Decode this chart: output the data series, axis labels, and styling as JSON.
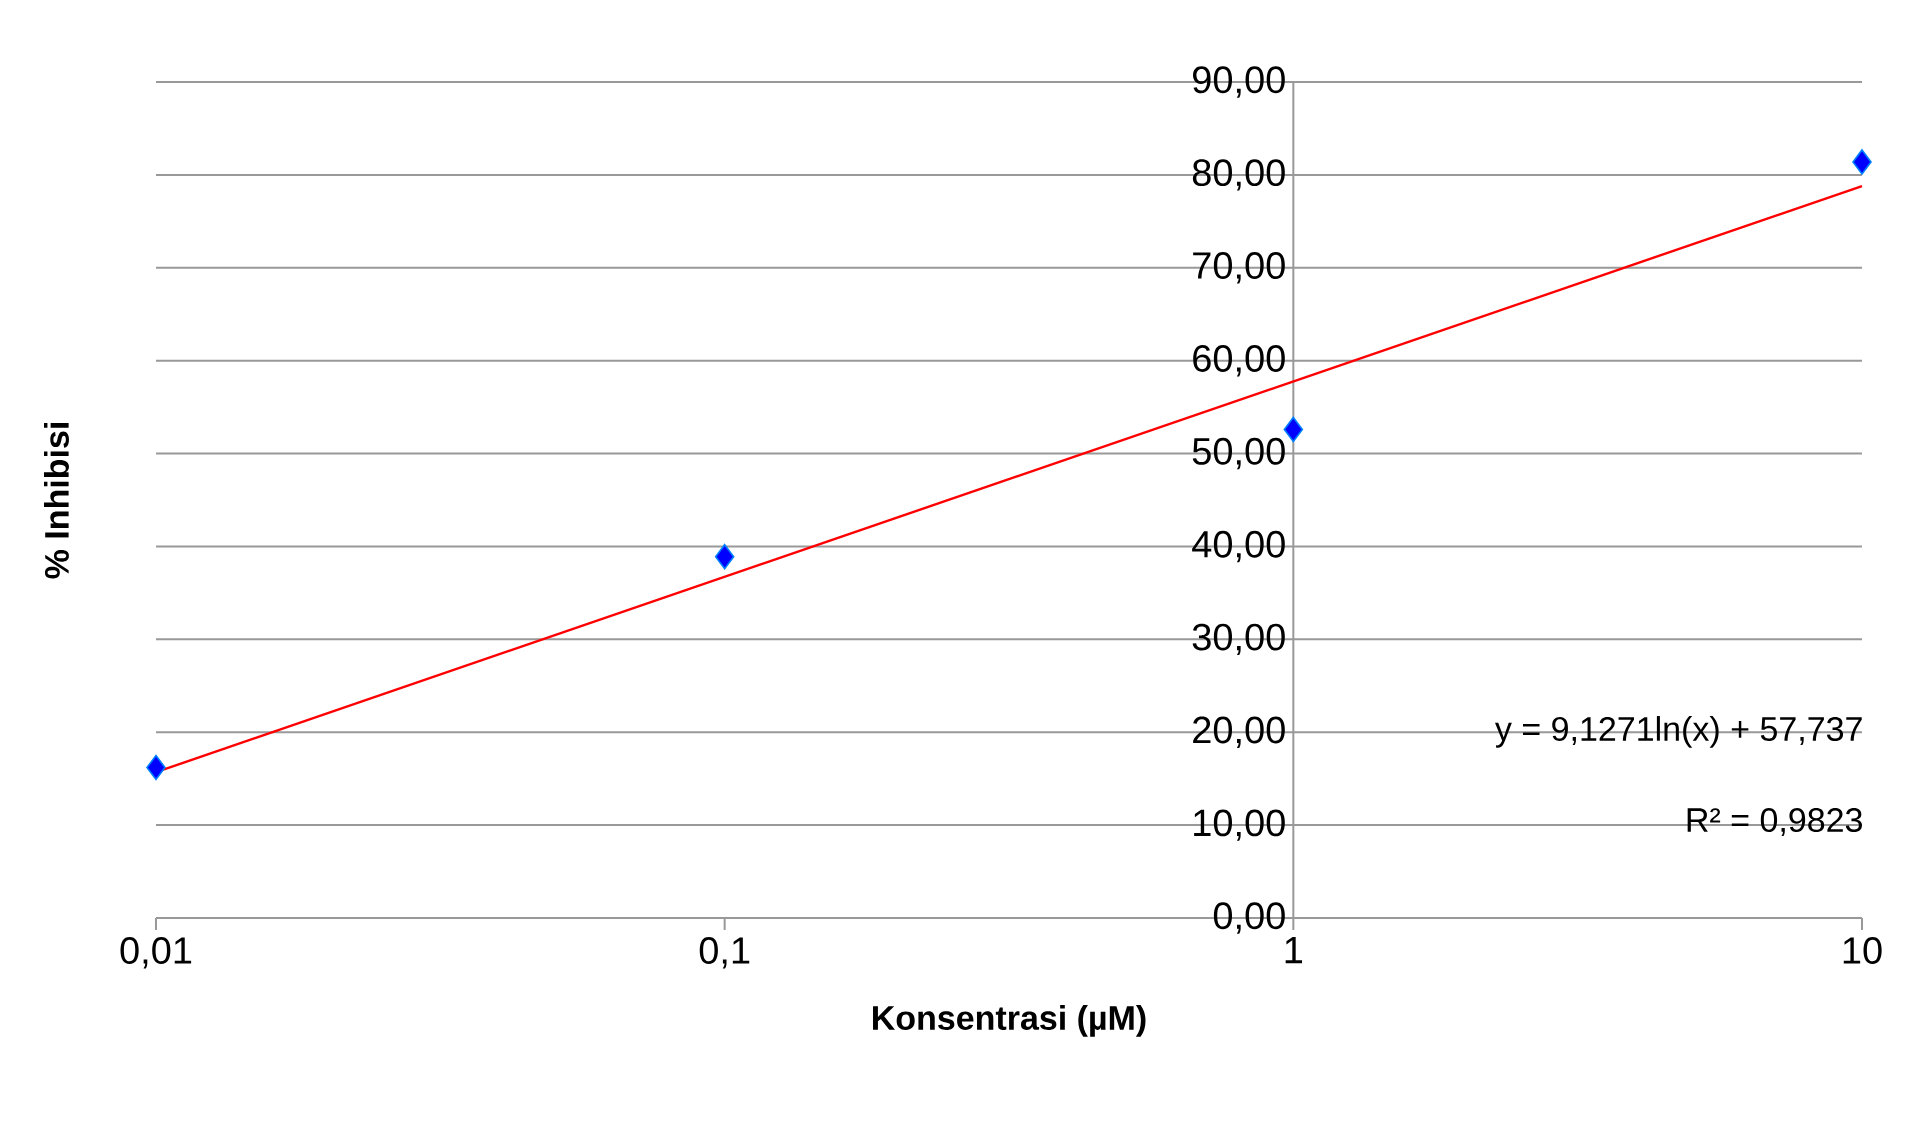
{
  "chart_data": {
    "type": "scatter",
    "xlabel": "**Konsentrasi (µM)**",
    "ylabel": "**% Inhibisi**",
    "log": "x",
    "grid": "y",
    "xlim": [
      0.01,
      10
    ],
    "ylim": [
      0,
      90
    ],
    "xticks": [
      {
        "value": 0.01,
        "label": "0,01"
      },
      {
        "value": 0.1,
        "label": "0,1"
      },
      {
        "value": 1,
        "label": "1"
      },
      {
        "value": 10,
        "label": "10"
      }
    ],
    "yticks": [
      {
        "value": 0,
        "label": "0,00"
      },
      {
        "value": 10,
        "label": "10,00"
      },
      {
        "value": 20,
        "label": "20,00"
      },
      {
        "value": 30,
        "label": "30,00"
      },
      {
        "value": 40,
        "label": "40,00"
      },
      {
        "value": 50,
        "label": "50,00"
      },
      {
        "value": 60,
        "label": "60,00"
      },
      {
        "value": 70,
        "label": "70,00"
      },
      {
        "value": 80,
        "label": "80,00"
      },
      {
        "value": 90,
        "label": "90,00"
      }
    ],
    "series": [
      {
        "marker": "diamond",
        "color": "#0000ff",
        "x": [
          0.01,
          0.1,
          1,
          10
        ],
        "values": [
          16.2,
          38.9,
          52.6,
          81.4
        ]
      },
      {
        "type": "line",
        "color": "#ff0000",
        "x": [
          0.01,
          10
        ],
        "values": [
          15.7,
          78.8
        ]
      }
    ],
    "annotations": [
      "y = 9,1271ln(x) + 57,737",
      "R² = 0,9823"
    ]
  }
}
